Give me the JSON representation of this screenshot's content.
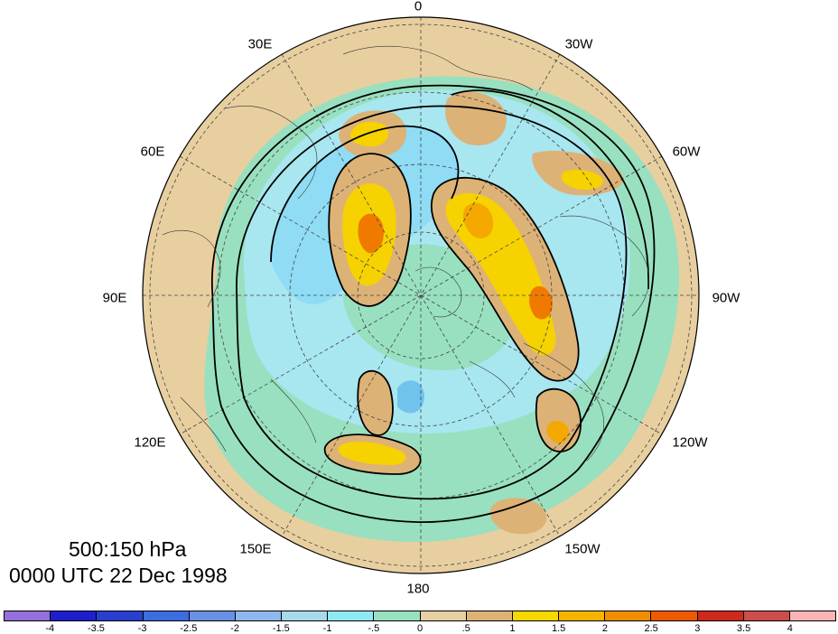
{
  "map": {
    "projection": "polar-stereographic-north",
    "longitude_labels": [
      "0",
      "30W",
      "60W",
      "90W",
      "120W",
      "150W",
      "180",
      "150E",
      "120E",
      "90E",
      "60E",
      "30E"
    ],
    "field_colors": {
      "ocean_mid": "#98e0c0",
      "low_neg": "#a8e6f0",
      "neg": "#8fdcf4",
      "more_neg": "#6fc3ec",
      "low_pos": "#e8cfa0",
      "pos": "#ddb277",
      "more_pos": "#f5d200",
      "strong_pos": "#f4a800",
      "strongest_pos": "#f07a00"
    }
  },
  "caption": {
    "line1": "500:150 hPa",
    "line2": "0000 UTC 22 Dec 1998"
  },
  "colorbar": {
    "colors": [
      "#9370db",
      "#1e1ecc",
      "#2a3fd0",
      "#3d6be0",
      "#6a90e6",
      "#8eb8ec",
      "#a7d8ec",
      "#8ee9f4",
      "#98e0c0",
      "#e6cfa2",
      "#ddb277",
      "#f7d800",
      "#f5b400",
      "#f38d00",
      "#ee5a00",
      "#cc2a1a",
      "#cc4d4d",
      "#f9b5b5"
    ],
    "tick_labels": [
      "-4",
      "-3.5",
      "-3",
      "-2.5",
      "-2",
      "-1.5",
      "-1",
      "-.5",
      "0",
      ".5",
      "1",
      "1.5",
      "2",
      "2.5",
      "3",
      "3.5",
      "4"
    ]
  }
}
